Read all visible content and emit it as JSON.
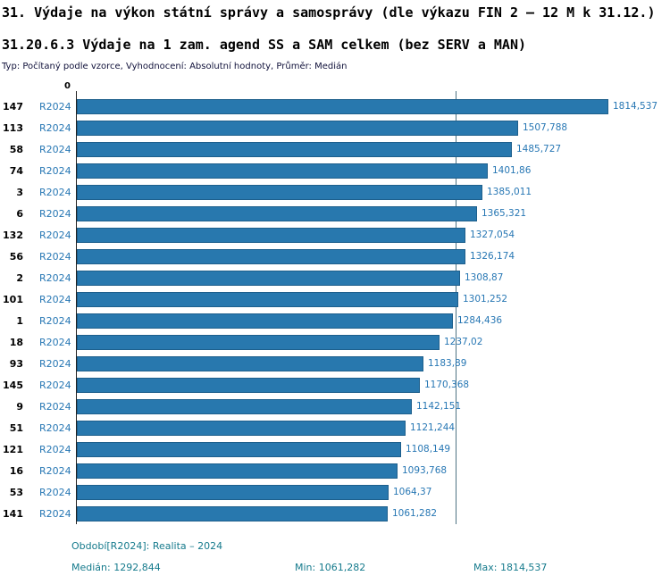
{
  "header": {
    "title": "31. Výdaje na výkon státní správy a samosprávy (dle výkazu FIN 2 – 12 M k 31.12.)",
    "subtitle": "31.20.6.3 Výdaje na 1 zam. agend SS a SAM celkem (bez SERV a MAN)",
    "meta": "Typ: Počítaný podle vzorce, Vyhodnocení: Absolutní hodnoty, Průměr: Medián"
  },
  "chart_data": {
    "type": "bar",
    "orientation": "horizontal",
    "title": "31.20.6.3 Výdaje na 1 zam. agend SS a SAM celkem (bez SERV a MAN)",
    "axis_zero_label": "0",
    "series_label": "R2024",
    "categories": [
      "147",
      "113",
      "58",
      "74",
      "3",
      "6",
      "132",
      "56",
      "2",
      "101",
      "1",
      "18",
      "93",
      "145",
      "9",
      "51",
      "121",
      "16",
      "53",
      "141"
    ],
    "values": [
      1814.537,
      1507.788,
      1485.727,
      1401.86,
      1385.011,
      1365.321,
      1327.054,
      1326.174,
      1308.87,
      1301.252,
      1284.436,
      1237.02,
      1183.89,
      1170.368,
      1142.151,
      1121.244,
      1108.149,
      1093.768,
      1064.37,
      1061.282
    ],
    "value_labels": [
      "1814,537",
      "1507,788",
      "1485,727",
      "1401,86",
      "1385,011",
      "1365,321",
      "1327,054",
      "1326,174",
      "1308,87",
      "1301,252",
      "1284,436",
      "1237,02",
      "1183,89",
      "1170,368",
      "1142,151",
      "1121,244",
      "1108,149",
      "1093,768",
      "1064,37",
      "1061,282"
    ],
    "xlim": [
      0,
      1814.537
    ],
    "median_value": 1292.844,
    "min_value": 1061.282,
    "max_value": 1814.537,
    "grid": false,
    "legend": "none",
    "bar_color": "#2878ae",
    "bar_border_color": "#1d5f8c",
    "label_color": "#2777b4",
    "median_line_color": "#4f7384"
  },
  "footer": {
    "period": "Období[R2024]: Realita – 2024",
    "median": "Medián: 1292,844",
    "min": "Min: 1061,282",
    "max": "Max: 1814,537"
  }
}
